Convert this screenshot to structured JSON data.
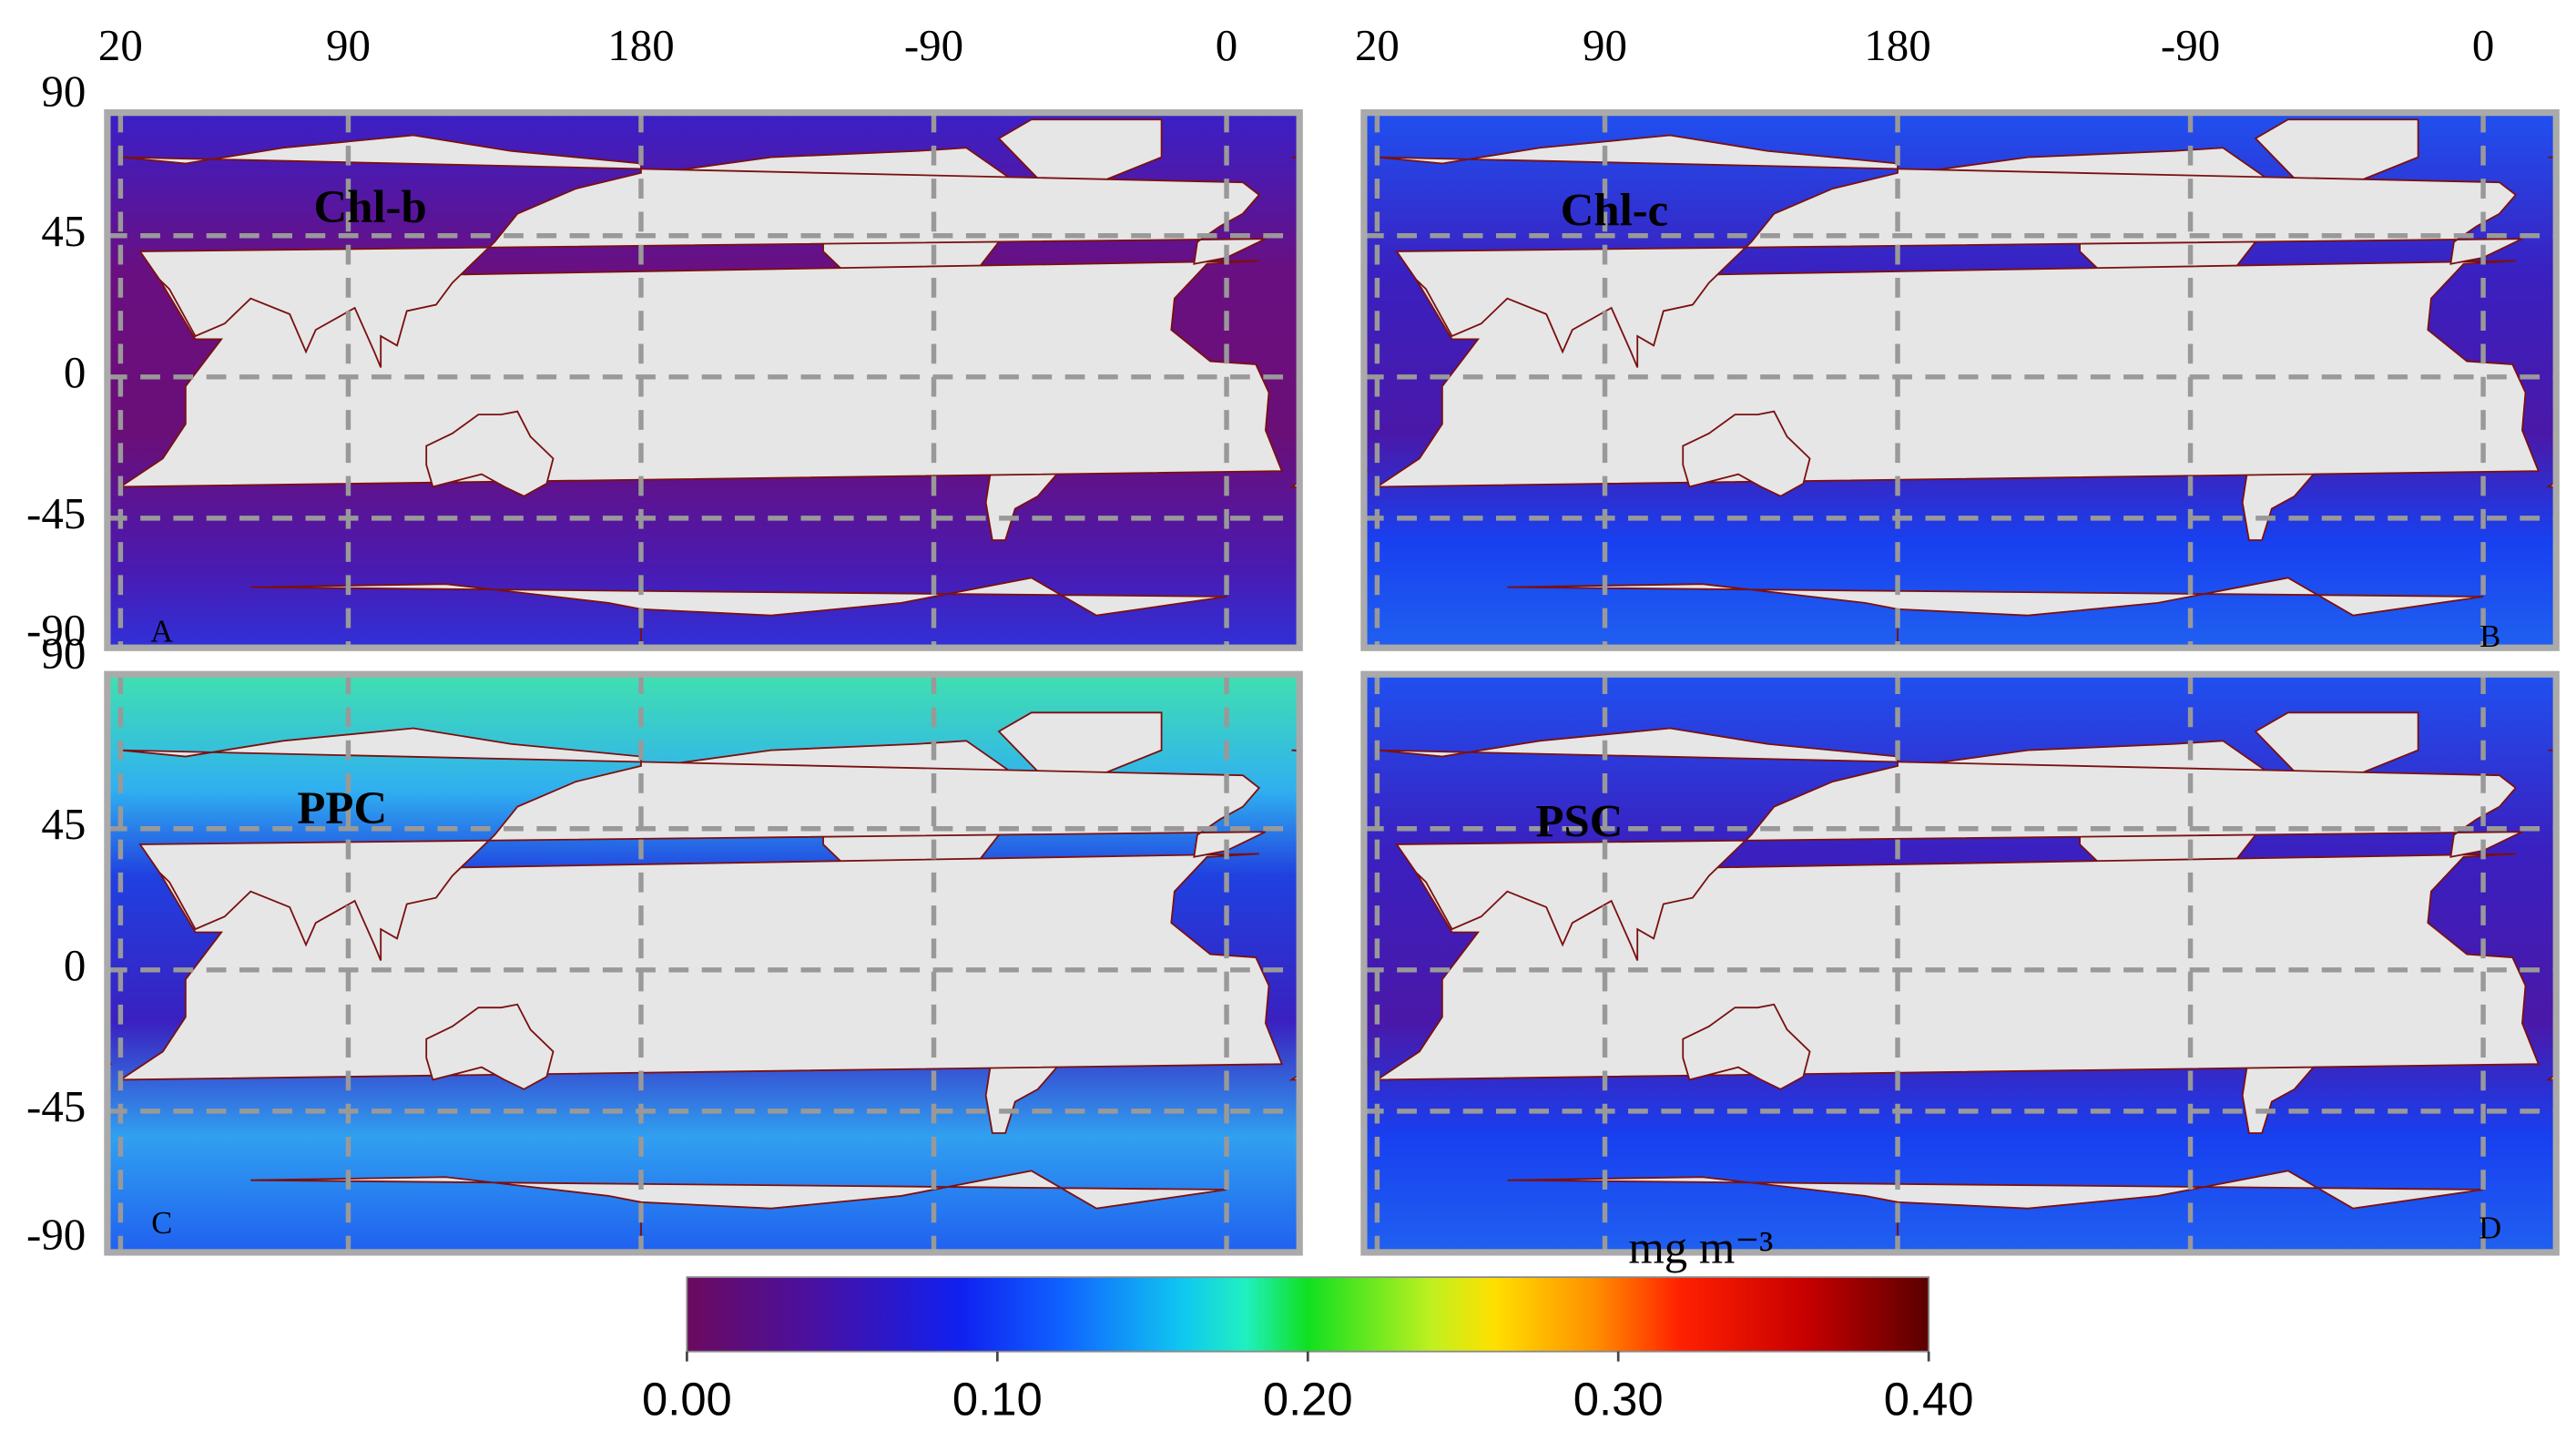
{
  "figure": {
    "lon_ticks": [
      20,
      90,
      180,
      -90,
      0
    ],
    "lat_ticks": [
      90,
      45,
      0,
      -45,
      -90
    ],
    "panels": [
      {
        "title": "Chl-b",
        "letter": "A"
      },
      {
        "title": "Chl-c",
        "letter": "B"
      },
      {
        "title": "PPC",
        "letter": "C"
      },
      {
        "title": "PSC",
        "letter": "D"
      }
    ],
    "colorbar": {
      "unit": "mg m⁻³",
      "ticks": [
        {
          "value": 0,
          "label": "0.00"
        },
        {
          "value": 0.1,
          "label": "0.10"
        },
        {
          "value": 0.2,
          "label": "0.20"
        },
        {
          "value": 0.3,
          "label": "0.30"
        },
        {
          "value": 0.4,
          "label": "0.40"
        }
      ]
    }
  }
}
